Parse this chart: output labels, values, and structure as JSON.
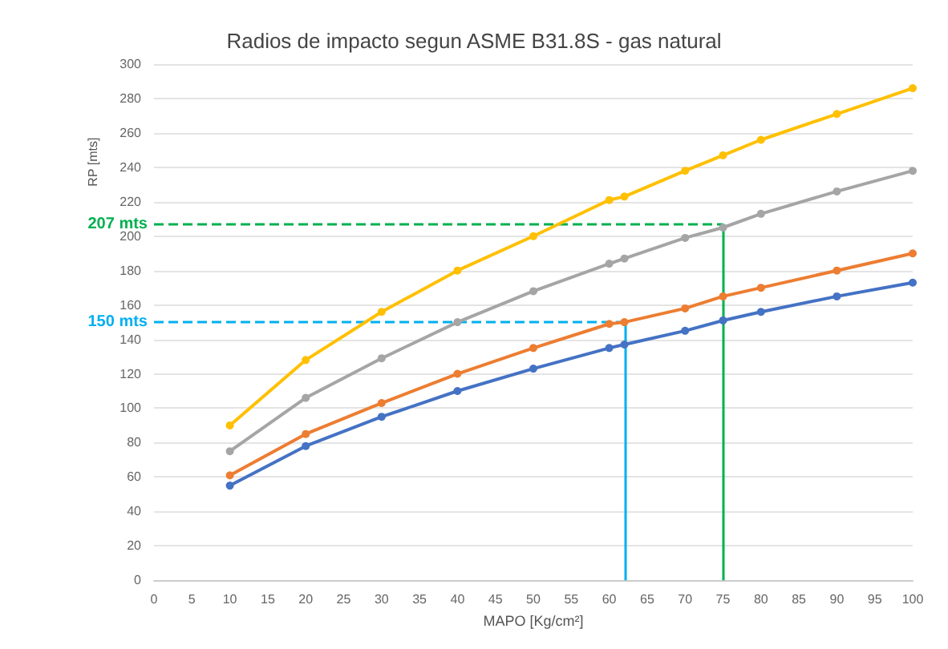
{
  "chart_data": {
    "type": "line",
    "title": "Radios de impacto segun ASME B31.8S - gas natural",
    "xlabel": "MAPO [Kg/cm²]",
    "ylabel": "RP [mts]",
    "x": [
      10,
      20,
      30,
      40,
      50,
      60,
      62,
      70,
      75,
      80,
      90,
      100
    ],
    "series": [
      {
        "color": "#ffc000",
        "values": [
          90,
          128,
          156,
          180,
          200,
          221,
          223,
          238,
          247,
          256,
          271,
          286
        ]
      },
      {
        "color": "#a5a5a5",
        "values": [
          75,
          106,
          129,
          150,
          168,
          184,
          187,
          199,
          205,
          213,
          226,
          238
        ]
      },
      {
        "color": "#ed7d31",
        "values": [
          61,
          85,
          103,
          120,
          135,
          149,
          150,
          158,
          165,
          170,
          180,
          190
        ]
      },
      {
        "color": "#4472c4",
        "values": [
          55,
          78,
          95,
          110,
          123,
          135,
          137,
          145,
          151,
          156,
          165,
          173
        ]
      }
    ],
    "xlim": [
      0,
      100
    ],
    "xticks": [
      0,
      5,
      10,
      15,
      20,
      25,
      30,
      35,
      40,
      45,
      50,
      55,
      60,
      65,
      70,
      75,
      80,
      85,
      90,
      95,
      100
    ],
    "ylim": [
      0,
      300
    ],
    "yticks": [
      0,
      20,
      40,
      60,
      80,
      100,
      120,
      140,
      160,
      180,
      200,
      220,
      240,
      260,
      280,
      300
    ],
    "ref_lines": [
      {
        "axis": "y",
        "value": 207,
        "label": "207 mts",
        "color": "#00b050",
        "line_style": "dashed"
      },
      {
        "axis": "x",
        "value": 75,
        "label": null,
        "color": "#00b050",
        "line_style": "solid"
      },
      {
        "axis": "y",
        "value": 150,
        "label": "150 mts",
        "color": "#00b0f0",
        "line_style": "dashed"
      },
      {
        "axis": "x",
        "value": 62,
        "label": null,
        "color": "#00b0f0",
        "line_style": "solid"
      }
    ],
    "grid": "y",
    "marker": "circle",
    "line_style": "solid"
  }
}
